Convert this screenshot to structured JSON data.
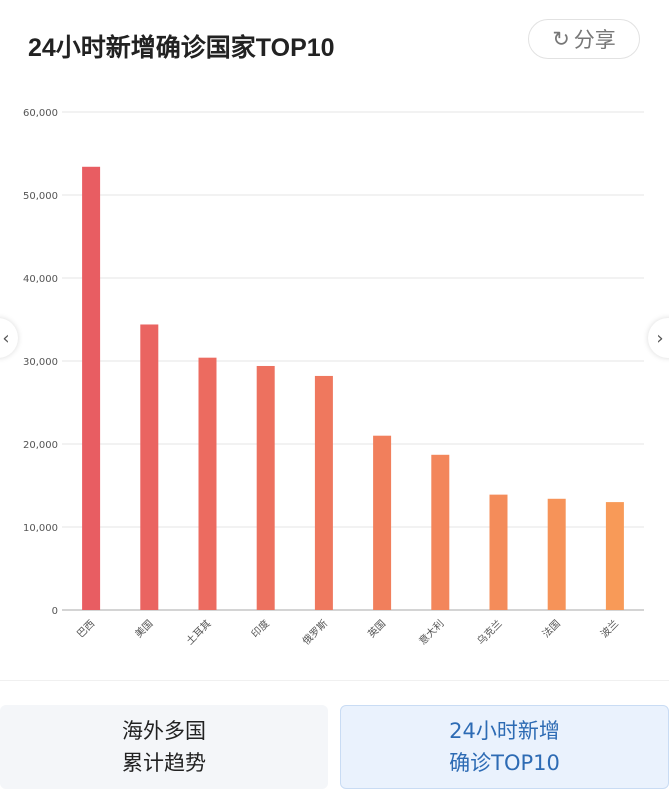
{
  "header": {
    "title": "24小时新增确诊国家TOP10",
    "share_label": "分享",
    "share_icon": "share-arrow-icon"
  },
  "nav": {
    "prev_icon": "chevron-left-icon",
    "next_icon": "chevron-right-icon"
  },
  "chart_data": {
    "type": "bar",
    "categories": [
      "巴西",
      "美国",
      "土耳其",
      "印度",
      "俄罗斯",
      "英国",
      "意大利",
      "乌克兰",
      "法国",
      "波兰"
    ],
    "values": [
      53400,
      34400,
      30400,
      29400,
      28200,
      21000,
      18700,
      13900,
      13400,
      13000
    ],
    "ylim": [
      0,
      60000
    ],
    "yticks": [
      "0",
      "10,000",
      "20,000",
      "30,000",
      "40,000",
      "50,000",
      "60,000"
    ],
    "grid": true,
    "colors": {
      "start": "#e85d62",
      "end": "#f89a58"
    }
  },
  "tabs": [
    {
      "label": "海外多国\n累计趋势",
      "active": false
    },
    {
      "label": "24小时新增\n确诊TOP10",
      "active": true
    }
  ]
}
